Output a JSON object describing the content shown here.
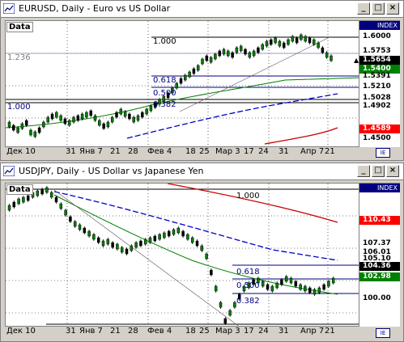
{
  "win1": {
    "title": "EURUSD, Daily - Euro vs US Dollar",
    "data_label": "Data",
    "index_label": "INDEX",
    "fib_labels": [
      "1.000",
      "1.236",
      "0.618",
      "0.500",
      "0.382",
      "1.000"
    ],
    "x_labels": [
      "Дек 10",
      "31",
      "Янв 7",
      "21",
      "28",
      "Фев 4",
      "18",
      "25",
      "Мар 3",
      "17",
      "24",
      "31",
      "Апр 7",
      "21"
    ],
    "price_labels": [
      {
        "text": "1.6000",
        "color": "#000000",
        "bg": "#ffffff"
      },
      {
        "text": "1.5753",
        "color": "#000000",
        "bg": "#ffffff"
      },
      {
        "text": "1.5654",
        "color": "#ffffff",
        "bg": "#000000"
      },
      {
        "text": "1.5400",
        "color": "#ffffff",
        "bg": "#008000"
      },
      {
        "text": "1.5391",
        "color": "#000000",
        "bg": "#ffffff"
      },
      {
        "text": "1.5210",
        "color": "#000000",
        "bg": "#ffffff"
      },
      {
        "text": "1.5028",
        "color": "#000000",
        "bg": "#ffffff"
      },
      {
        "text": "1.4902",
        "color": "#000000",
        "bg": "#ffffff"
      },
      {
        "text": "1.4589",
        "color": "#ffffff",
        "bg": "#ff0000"
      },
      {
        "text": "1.4500",
        "color": "#000000",
        "bg": "#ffffff"
      }
    ],
    "up_arrow": "▲"
  },
  "win2": {
    "title": "USDJPY, Daily - US Dollar vs Japanese Yen",
    "data_label": "Data",
    "index_label": "INDEX",
    "fib_labels": [
      "1.000",
      "0.618",
      "0.500",
      "0.382"
    ],
    "x_labels": [
      "Дек 10",
      "31",
      "Янв 7",
      "21",
      "28",
      "Фев 4",
      "18",
      "25",
      "Мар 3",
      "17",
      "24",
      "31",
      "Апр 7",
      "21"
    ],
    "price_labels": [
      {
        "text": "110.43",
        "color": "#ffffff",
        "bg": "#ff0000"
      },
      {
        "text": "107.37",
        "color": "#000000",
        "bg": "#ffffff"
      },
      {
        "text": "106.01",
        "color": "#000000",
        "bg": "#ffffff"
      },
      {
        "text": "105.10",
        "color": "#000000",
        "bg": "#ffffff"
      },
      {
        "text": "104.36",
        "color": "#ffffff",
        "bg": "#000000"
      },
      {
        "text": "102.98",
        "color": "#ffffff",
        "bg": "#008000"
      },
      {
        "text": "100.00",
        "color": "#000000",
        "bg": "#ffffff"
      }
    ]
  },
  "buttons": {
    "min": "_",
    "max": "□",
    "close": "×",
    "ie": "IE"
  },
  "colors": {
    "green_candle": "#008000",
    "red_ma": "#cc0000",
    "blue_ma": "#0000cc",
    "green_ma": "#008000"
  }
}
